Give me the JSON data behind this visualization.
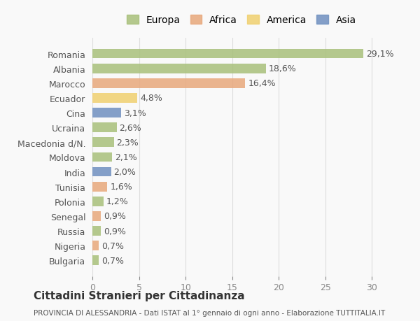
{
  "categories": [
    "Romania",
    "Albania",
    "Marocco",
    "Ecuador",
    "Cina",
    "Ucraina",
    "Macedonia d/N.",
    "Moldova",
    "India",
    "Tunisia",
    "Polonia",
    "Senegal",
    "Russia",
    "Nigeria",
    "Bulgaria"
  ],
  "values": [
    29.1,
    18.6,
    16.4,
    4.8,
    3.1,
    2.6,
    2.3,
    2.1,
    2.0,
    1.6,
    1.2,
    0.9,
    0.9,
    0.7,
    0.7
  ],
  "labels": [
    "29,1%",
    "18,6%",
    "16,4%",
    "4,8%",
    "3,1%",
    "2,6%",
    "2,3%",
    "2,1%",
    "2,0%",
    "1,6%",
    "1,2%",
    "0,9%",
    "0,9%",
    "0,7%",
    "0,7%"
  ],
  "colors": [
    "#a8c07a",
    "#a8c07a",
    "#e8a87c",
    "#f0d070",
    "#7090c0",
    "#a8c07a",
    "#a8c07a",
    "#a8c07a",
    "#7090c0",
    "#e8a87c",
    "#a8c07a",
    "#e8a87c",
    "#a8c07a",
    "#e8a87c",
    "#a8c07a"
  ],
  "legend": {
    "labels": [
      "Europa",
      "Africa",
      "America",
      "Asia"
    ],
    "colors": [
      "#a8c07a",
      "#e8a87c",
      "#f0d070",
      "#7090c0"
    ]
  },
  "xlim": [
    0,
    32
  ],
  "xticks": [
    0,
    5,
    10,
    15,
    20,
    25,
    30
  ],
  "title": "Cittadini Stranieri per Cittadinanza",
  "subtitle": "PROVINCIA DI ALESSANDRIA - Dati ISTAT al 1° gennaio di ogni anno - Elaborazione TUTTITALIA.IT",
  "background_color": "#f9f9f9",
  "grid_color": "#dddddd",
  "bar_height": 0.65,
  "label_fontsize": 9,
  "tick_fontsize": 9
}
